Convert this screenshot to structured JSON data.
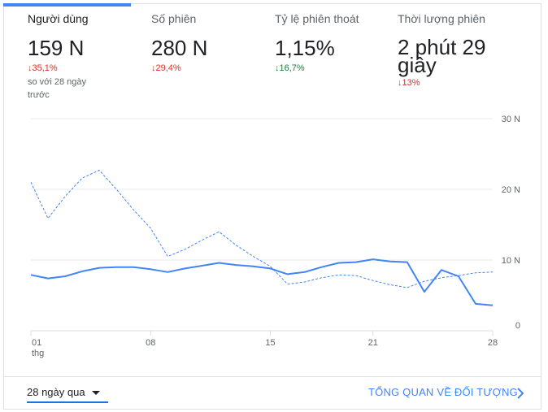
{
  "metrics": [
    {
      "label": "Người dùng",
      "value": "159 N",
      "delta": "↓35,1%",
      "compare": "so với 28 ngày trước"
    },
    {
      "label": "Số phiên",
      "value": "280 N",
      "delta": "↓29,4%"
    },
    {
      "label": "Tỷ lệ phiên thoát",
      "value": "1,15%",
      "delta": "↓16,7%"
    },
    {
      "label": "Thời lượng phiên",
      "value": "2 phút 29 giây",
      "delta": "↓13%"
    }
  ],
  "colors": {
    "accent": "#4285f4",
    "negative": "#d93025",
    "positive": "#188038"
  },
  "chart_data": {
    "type": "line",
    "x": [
      1,
      2,
      3,
      4,
      5,
      6,
      7,
      8,
      9,
      10,
      11,
      12,
      13,
      14,
      15,
      16,
      17,
      18,
      19,
      20,
      21,
      22,
      23,
      24,
      25,
      26,
      27,
      28
    ],
    "x_ticks": [
      "01",
      "08",
      "15",
      "21",
      "28"
    ],
    "x_tick_values": [
      1,
      8,
      15,
      21,
      28
    ],
    "x_tick_sublabel": "thg",
    "y_ticks": [
      "30 N",
      "20 N",
      "10 N",
      "0"
    ],
    "y_tick_values": [
      30000,
      20000,
      10000,
      0
    ],
    "ylim": [
      0,
      30000
    ],
    "grid": true,
    "series": [
      {
        "style": "solid",
        "color": "#4285f4",
        "values": [
          7900,
          7400,
          7700,
          8400,
          8900,
          9000,
          9000,
          8700,
          8300,
          8800,
          9200,
          9600,
          9300,
          9100,
          8800,
          8000,
          8300,
          9000,
          9600,
          9700,
          10100,
          9800,
          9700,
          5500,
          8600,
          7700,
          3800,
          3600
        ]
      },
      {
        "style": "dashed",
        "color": "#4285f4",
        "values": [
          21000,
          15900,
          19000,
          21600,
          22700,
          20000,
          17100,
          14500,
          10500,
          11500,
          12800,
          14000,
          12100,
          10500,
          9100,
          6600,
          6900,
          7500,
          7900,
          7800,
          7100,
          6500,
          6100,
          7000,
          7500,
          7800,
          8200,
          8300
        ]
      }
    ]
  },
  "footer": {
    "date_range": "28 ngày qua",
    "overview_link": "TỔNG QUAN VỀ ĐỐI TƯỢNG"
  }
}
